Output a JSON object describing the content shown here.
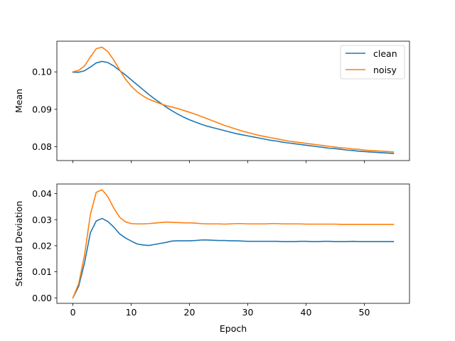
{
  "colors": {
    "clean": "#1f77b4",
    "noisy": "#ff7f0e"
  },
  "chart_data": [
    {
      "type": "line",
      "ylabel": "Mean",
      "xlabel": "",
      "xlim": [
        -2.75,
        57.75
      ],
      "ylim": [
        0.0763,
        0.1082
      ],
      "xticks": [
        0,
        10,
        20,
        30,
        40,
        50
      ],
      "xtick_labels_visible": false,
      "yticks": [
        0.08,
        0.09,
        0.1
      ],
      "ytick_labels": [
        "0.08",
        "0.09",
        "0.10"
      ],
      "legend": {
        "position": "upper-right",
        "entries": [
          "clean",
          "noisy"
        ]
      },
      "x": [
        0,
        1,
        2,
        3,
        4,
        5,
        6,
        7,
        8,
        9,
        10,
        11,
        12,
        13,
        14,
        15,
        16,
        17,
        18,
        19,
        20,
        21,
        22,
        23,
        24,
        25,
        26,
        27,
        28,
        29,
        30,
        31,
        32,
        33,
        34,
        35,
        36,
        37,
        38,
        39,
        40,
        41,
        42,
        43,
        44,
        45,
        46,
        47,
        48,
        49,
        50,
        51,
        52,
        53,
        54,
        55
      ],
      "series": [
        {
          "name": "clean",
          "values": [
            0.0999,
            0.0999,
            0.1003,
            0.1013,
            0.1024,
            0.1028,
            0.1025,
            0.1016,
            0.1004,
            0.0992,
            0.0979,
            0.0966,
            0.0953,
            0.094,
            0.0928,
            0.0917,
            0.0906,
            0.0896,
            0.0887,
            0.0879,
            0.0872,
            0.0866,
            0.086,
            0.0855,
            0.0851,
            0.0847,
            0.0843,
            0.0839,
            0.0835,
            0.0832,
            0.0829,
            0.0826,
            0.0823,
            0.082,
            0.0817,
            0.0815,
            0.0812,
            0.081,
            0.0808,
            0.0806,
            0.0804,
            0.0802,
            0.08,
            0.0798,
            0.0796,
            0.0795,
            0.0793,
            0.0791,
            0.079,
            0.0788,
            0.0787,
            0.0786,
            0.0785,
            0.0784,
            0.0783,
            0.0782
          ]
        },
        {
          "name": "noisy",
          "values": [
            0.1,
            0.1004,
            0.1016,
            0.104,
            0.1062,
            0.1066,
            0.1054,
            0.1032,
            0.1006,
            0.0981,
            0.0962,
            0.0947,
            0.0936,
            0.0927,
            0.0921,
            0.0915,
            0.091,
            0.0906,
            0.0902,
            0.0897,
            0.0892,
            0.0887,
            0.0881,
            0.0875,
            0.0869,
            0.0863,
            0.0857,
            0.0852,
            0.0847,
            0.0842,
            0.0838,
            0.0834,
            0.083,
            0.0827,
            0.0824,
            0.0821,
            0.0818,
            0.0815,
            0.0813,
            0.0811,
            0.0809,
            0.0807,
            0.0805,
            0.0803,
            0.0801,
            0.0799,
            0.0797,
            0.0796,
            0.0794,
            0.0793,
            0.0791,
            0.079,
            0.0789,
            0.0788,
            0.0787,
            0.0786
          ]
        }
      ]
    },
    {
      "type": "line",
      "ylabel": "Standard Deviation",
      "xlabel": "Epoch",
      "xlim": [
        -2.75,
        57.75
      ],
      "ylim": [
        -0.0021,
        0.0437
      ],
      "xticks": [
        0,
        10,
        20,
        30,
        40,
        50
      ],
      "xtick_labels": [
        "0",
        "10",
        "20",
        "30",
        "40",
        "50"
      ],
      "xtick_labels_visible": true,
      "yticks": [
        0.0,
        0.01,
        0.02,
        0.03,
        0.04
      ],
      "ytick_labels": [
        "0.00",
        "0.01",
        "0.02",
        "0.03",
        "0.04"
      ],
      "x": [
        0,
        1,
        2,
        3,
        4,
        5,
        6,
        7,
        8,
        9,
        10,
        11,
        12,
        13,
        14,
        15,
        16,
        17,
        18,
        19,
        20,
        21,
        22,
        23,
        24,
        25,
        26,
        27,
        28,
        29,
        30,
        31,
        32,
        33,
        34,
        35,
        36,
        37,
        38,
        39,
        40,
        41,
        42,
        43,
        44,
        45,
        46,
        47,
        48,
        49,
        50,
        51,
        52,
        53,
        54,
        55
      ],
      "series": [
        {
          "name": "clean",
          "values": [
            0.0,
            0.0045,
            0.0135,
            0.025,
            0.0295,
            0.0305,
            0.0293,
            0.0272,
            0.0246,
            0.023,
            0.0218,
            0.0207,
            0.0203,
            0.0201,
            0.0205,
            0.0209,
            0.0213,
            0.0218,
            0.0219,
            0.0219,
            0.0219,
            0.022,
            0.0222,
            0.0222,
            0.0221,
            0.022,
            0.022,
            0.0219,
            0.0219,
            0.0218,
            0.0217,
            0.0217,
            0.0217,
            0.0217,
            0.0217,
            0.0217,
            0.0216,
            0.0216,
            0.0216,
            0.0217,
            0.0217,
            0.0216,
            0.0216,
            0.0217,
            0.0217,
            0.0216,
            0.0216,
            0.0216,
            0.0217,
            0.0216,
            0.0216,
            0.0216,
            0.0216,
            0.0216,
            0.0216,
            0.0216
          ]
        },
        {
          "name": "noisy",
          "values": [
            0.0,
            0.0055,
            0.0165,
            0.032,
            0.0405,
            0.0415,
            0.0388,
            0.0345,
            0.031,
            0.0292,
            0.0285,
            0.0284,
            0.0284,
            0.0285,
            0.0287,
            0.0289,
            0.0291,
            0.029,
            0.0289,
            0.0288,
            0.0288,
            0.0287,
            0.0285,
            0.0284,
            0.0284,
            0.0284,
            0.0283,
            0.0284,
            0.0285,
            0.0285,
            0.0284,
            0.0284,
            0.0284,
            0.0284,
            0.0285,
            0.0285,
            0.0284,
            0.0284,
            0.0284,
            0.0284,
            0.0283,
            0.0283,
            0.0283,
            0.0283,
            0.0283,
            0.0283,
            0.0282,
            0.0282,
            0.0282,
            0.0282,
            0.0282,
            0.0282,
            0.0282,
            0.0282,
            0.0282,
            0.0282
          ]
        }
      ]
    }
  ]
}
